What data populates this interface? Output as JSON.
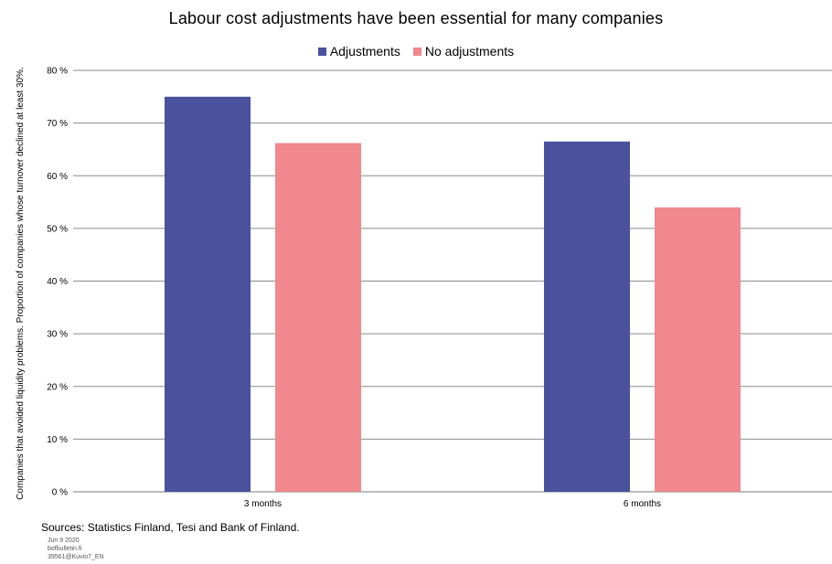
{
  "chart_data": {
    "type": "bar",
    "title": "Labour cost adjustments have been essential for many companies",
    "ylabel": "Companies that avoided liquidity problems. Proportion of companies whose turnover declined at least 30%.",
    "xlabel": "",
    "categories": [
      "3 months",
      "6 months"
    ],
    "series": [
      {
        "name": "Adjustments",
        "color": "#4a529e",
        "values": [
          75,
          66.5
        ]
      },
      {
        "name": "No adjustments",
        "color": "#f0888e",
        "values": [
          66.2,
          54
        ]
      }
    ],
    "ylim": [
      0,
      80
    ],
    "yticks": [
      0,
      10,
      20,
      30,
      40,
      50,
      60,
      70,
      80
    ],
    "ytick_labels": [
      "0 %",
      "10 %",
      "20 %",
      "30 %",
      "40 %",
      "50 %",
      "60 %",
      "70 %",
      "80 %"
    ],
    "grid": true,
    "legend_position": "top-center"
  },
  "footer": {
    "source": "Sources: Statistics Finland, Tesi and Bank of Finland.",
    "date": "Jun 9 2020",
    "site": "bofbulletin.fi",
    "code": "39561@Kuvio7_EN"
  }
}
